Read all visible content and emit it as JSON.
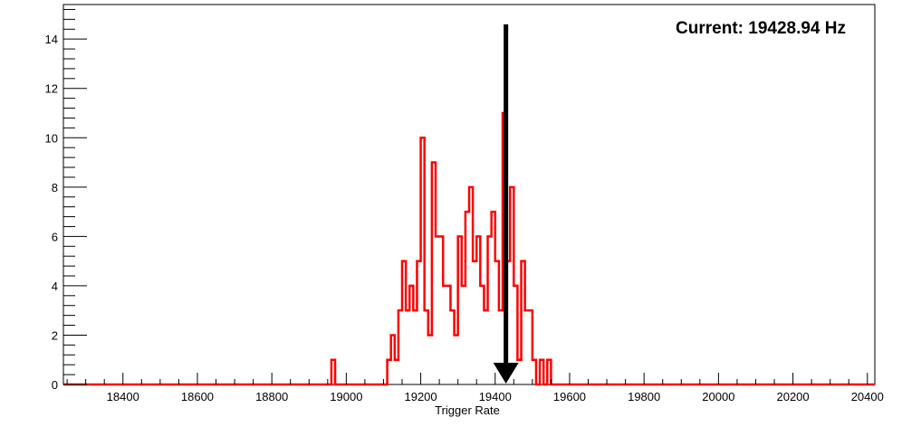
{
  "chart_data": {
    "type": "histogram",
    "title": "",
    "xlabel": "Trigger Rate",
    "ylabel": "",
    "xlim": [
      18240,
      20420
    ],
    "ylim": [
      0,
      15.4
    ],
    "x_ticks": [
      18400,
      18600,
      18800,
      19000,
      19200,
      19400,
      19600,
      19800,
      20000,
      20200,
      20400
    ],
    "y_ticks": [
      0,
      2,
      4,
      6,
      8,
      10,
      12,
      14
    ],
    "x_tick_labels": [
      "18400",
      "18600",
      "18800",
      "19000",
      "19200",
      "19400",
      "19600",
      "19800",
      "20000",
      "20200",
      "20400"
    ],
    "y_tick_labels": [
      "0",
      "2",
      "4",
      "6",
      "8",
      "10",
      "12",
      "14"
    ],
    "bin_width": 10,
    "bin_range": [
      18240,
      20420
    ],
    "nonzero_bins": [
      [
        18960,
        1
      ],
      [
        19110,
        1
      ],
      [
        19120,
        2
      ],
      [
        19130,
        1
      ],
      [
        19140,
        3
      ],
      [
        19150,
        5
      ],
      [
        19160,
        3
      ],
      [
        19170,
        4
      ],
      [
        19180,
        3
      ],
      [
        19190,
        5
      ],
      [
        19200,
        10
      ],
      [
        19210,
        3
      ],
      [
        19220,
        2
      ],
      [
        19230,
        9
      ],
      [
        19240,
        6
      ],
      [
        19250,
        6
      ],
      [
        19260,
        4
      ],
      [
        19270,
        4
      ],
      [
        19280,
        3
      ],
      [
        19290,
        2
      ],
      [
        19300,
        6
      ],
      [
        19310,
        4
      ],
      [
        19320,
        7
      ],
      [
        19330,
        8
      ],
      [
        19340,
        5
      ],
      [
        19350,
        6
      ],
      [
        19360,
        4
      ],
      [
        19370,
        3
      ],
      [
        19380,
        6
      ],
      [
        19390,
        7
      ],
      [
        19400,
        5
      ],
      [
        19410,
        3
      ],
      [
        19420,
        11
      ],
      [
        19430,
        5
      ],
      [
        19440,
        8
      ],
      [
        19450,
        4
      ],
      [
        19460,
        1
      ],
      [
        19470,
        5
      ],
      [
        19480,
        3
      ],
      [
        19490,
        3
      ],
      [
        19500,
        1
      ],
      [
        19520,
        1
      ],
      [
        19540,
        1
      ]
    ],
    "line_color": "#ff0000",
    "grid": false,
    "current_value": 19428.94,
    "current_arrow_top": 14.6,
    "annotation": "Current: 19428.94 Hz",
    "annotation_position": "top-right"
  }
}
